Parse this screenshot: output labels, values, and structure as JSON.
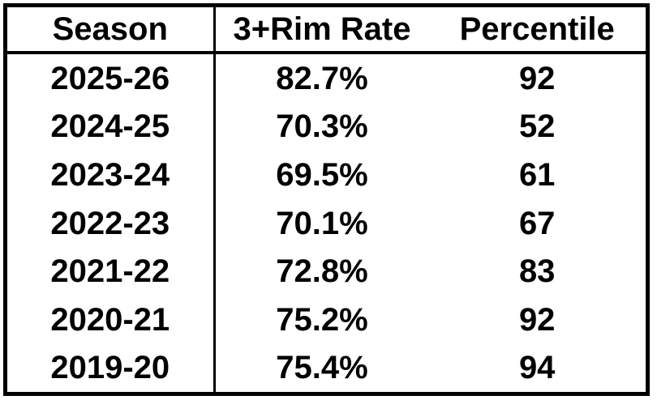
{
  "table": {
    "headers": [
      "Season",
      "3+Rim Rate",
      "Percentile"
    ],
    "rows": [
      {
        "season": "2025-26",
        "rate": "82.7%",
        "percentile": "92"
      },
      {
        "season": "2024-25",
        "rate": "70.3%",
        "percentile": "52"
      },
      {
        "season": "2023-24",
        "rate": "69.5%",
        "percentile": "61"
      },
      {
        "season": "2022-23",
        "rate": "70.1%",
        "percentile": "67"
      },
      {
        "season": "2021-22",
        "rate": "72.8%",
        "percentile": "83"
      },
      {
        "season": "2020-21",
        "rate": "75.2%",
        "percentile": "92"
      },
      {
        "season": "2019-20",
        "rate": "75.4%",
        "percentile": "94"
      }
    ]
  },
  "colors": {
    "border": "#000000",
    "text": "#000000",
    "background": "#ffffff"
  },
  "chart_data": {
    "type": "table",
    "title": "",
    "columns": [
      "Season",
      "3+Rim Rate",
      "Percentile"
    ],
    "categories": [
      "2025-26",
      "2024-25",
      "2023-24",
      "2022-23",
      "2021-22",
      "2020-21",
      "2019-20"
    ],
    "series": [
      {
        "name": "3+Rim Rate",
        "values": [
          82.7,
          70.3,
          69.5,
          70.1,
          72.8,
          75.2,
          75.4
        ]
      },
      {
        "name": "Percentile",
        "values": [
          92,
          52,
          61,
          67,
          83,
          92,
          94
        ]
      }
    ]
  }
}
